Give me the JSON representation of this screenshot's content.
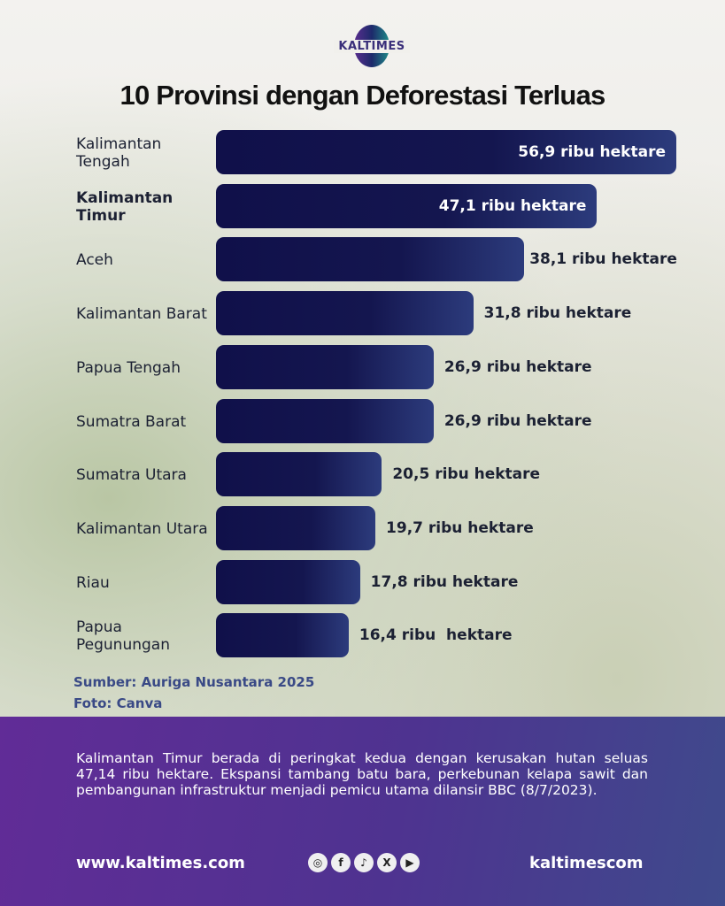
{
  "brand": {
    "logo_text": "KALTIMES"
  },
  "chart_data": {
    "type": "bar",
    "orientation": "horizontal",
    "title": "10 Provinsi dengan Deforestasi Terluas",
    "unit": "ribu hektare",
    "categories": [
      "Kalimantan Tengah",
      "Kalimantan Timur",
      "Aceh",
      "Kalimantan Barat",
      "Papua Tengah",
      "Sumatra Barat",
      "Sumatra Utara",
      "Kalimantan Utara",
      "Riau",
      "Papua Pegunungan"
    ],
    "values": [
      56.9,
      47.1,
      38.1,
      31.8,
      26.9,
      26.9,
      20.5,
      19.7,
      17.8,
      16.4
    ],
    "data_labels": [
      "56,9 ribu hektare",
      "47,1 ribu hektare",
      "38,1 ribu hektare",
      "31,8 ribu hektare",
      "26,9 ribu hektare",
      "26,9 ribu hektare",
      "20,5 ribu hektare",
      "19,7 ribu hektare",
      "17,8 ribu hektare",
      "16,4 ribu  hektare"
    ],
    "highlight": "Kalimantan Timur",
    "xlim": [
      0,
      56.9
    ],
    "grid": false
  },
  "source": "Sumber:  Auriga Nusantara 2025",
  "photo_credit": "Foto: Canva",
  "description": "Kalimantan Timur berada di peringkat kedua dengan kerusakan hutan seluas 47,14 ribu hektare. Ekspansi tambang batu bara, perkebunan kelapa sawit dan pembangunan infrastruktur menjadi pemicu utama dilansir BBC (8/7/2023).",
  "footer": {
    "website": "www.kaltimes.com",
    "handle": "kaltimescom",
    "social_icons": [
      "instagram-icon",
      "facebook-icon",
      "tiktok-icon",
      "x-icon",
      "youtube-icon"
    ]
  },
  "colors": {
    "bar": "#10104a",
    "band": "#5a2f95"
  }
}
